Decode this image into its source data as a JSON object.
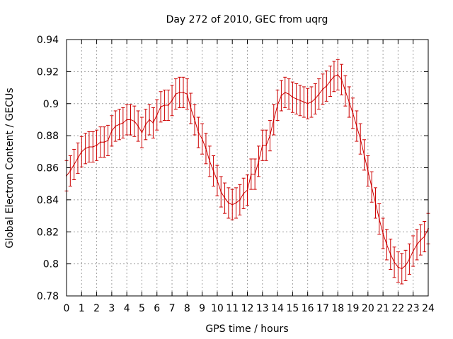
{
  "chart_data": {
    "type": "line",
    "title": "Day 272 of 2010, GEC from uqrg",
    "xlabel": "GPS time / hours",
    "ylabel": "Global Electron Content / GECUs",
    "xlim": [
      0,
      24
    ],
    "ylim": [
      0.78,
      0.94
    ],
    "x_ticks": [
      "0",
      "1",
      "2",
      "3",
      "4",
      "5",
      "6",
      "7",
      "8",
      "9",
      "10",
      "11",
      "12",
      "13",
      "14",
      "15",
      "16",
      "17",
      "18",
      "19",
      "20",
      "21",
      "22",
      "23",
      "24"
    ],
    "y_ticks": [
      "0.78",
      "0.8",
      "0.82",
      "0.84",
      "0.86",
      "0.88",
      "0.9",
      "0.92",
      "0.94"
    ],
    "grid": true,
    "series_color": "#cc0000",
    "series": [
      {
        "name": "GEC",
        "error": 0.0095,
        "points": [
          [
            0.0,
            0.855
          ],
          [
            0.25,
            0.858
          ],
          [
            0.5,
            0.862
          ],
          [
            0.75,
            0.866
          ],
          [
            1.0,
            0.87
          ],
          [
            1.25,
            0.872
          ],
          [
            1.5,
            0.873
          ],
          [
            1.75,
            0.873
          ],
          [
            2.0,
            0.874
          ],
          [
            2.25,
            0.876
          ],
          [
            2.5,
            0.876
          ],
          [
            2.75,
            0.877
          ],
          [
            3.0,
            0.883
          ],
          [
            3.25,
            0.886
          ],
          [
            3.5,
            0.887
          ],
          [
            3.75,
            0.888
          ],
          [
            4.0,
            0.89
          ],
          [
            4.25,
            0.89
          ],
          [
            4.5,
            0.889
          ],
          [
            4.75,
            0.886
          ],
          [
            5.0,
            0.882
          ],
          [
            5.25,
            0.887
          ],
          [
            5.5,
            0.89
          ],
          [
            5.75,
            0.888
          ],
          [
            6.0,
            0.893
          ],
          [
            6.25,
            0.898
          ],
          [
            6.5,
            0.899
          ],
          [
            6.75,
            0.899
          ],
          [
            7.0,
            0.902
          ],
          [
            7.25,
            0.906
          ],
          [
            7.5,
            0.907
          ],
          [
            7.75,
            0.907
          ],
          [
            8.0,
            0.906
          ],
          [
            8.25,
            0.897
          ],
          [
            8.5,
            0.89
          ],
          [
            8.75,
            0.882
          ],
          [
            9.0,
            0.878
          ],
          [
            9.25,
            0.872
          ],
          [
            9.5,
            0.864
          ],
          [
            9.75,
            0.858
          ],
          [
            10.0,
            0.852
          ],
          [
            10.25,
            0.845
          ],
          [
            10.5,
            0.841
          ],
          [
            10.75,
            0.838
          ],
          [
            11.0,
            0.837
          ],
          [
            11.25,
            0.838
          ],
          [
            11.5,
            0.84
          ],
          [
            11.75,
            0.844
          ],
          [
            12.0,
            0.846
          ],
          [
            12.25,
            0.856
          ],
          [
            12.5,
            0.856
          ],
          [
            12.75,
            0.864
          ],
          [
            13.0,
            0.874
          ],
          [
            13.25,
            0.874
          ],
          [
            13.5,
            0.88
          ],
          [
            13.75,
            0.89
          ],
          [
            14.0,
            0.899
          ],
          [
            14.25,
            0.905
          ],
          [
            14.5,
            0.907
          ],
          [
            14.75,
            0.906
          ],
          [
            15.0,
            0.904
          ],
          [
            15.25,
            0.903
          ],
          [
            15.5,
            0.902
          ],
          [
            15.75,
            0.901
          ],
          [
            16.0,
            0.9
          ],
          [
            16.25,
            0.901
          ],
          [
            16.5,
            0.903
          ],
          [
            16.75,
            0.906
          ],
          [
            17.0,
            0.909
          ],
          [
            17.25,
            0.911
          ],
          [
            17.5,
            0.914
          ],
          [
            17.75,
            0.917
          ],
          [
            18.0,
            0.918
          ],
          [
            18.25,
            0.915
          ],
          [
            18.5,
            0.908
          ],
          [
            18.75,
            0.901
          ],
          [
            19.0,
            0.894
          ],
          [
            19.25,
            0.886
          ],
          [
            19.5,
            0.878
          ],
          [
            19.75,
            0.868
          ],
          [
            20.0,
            0.858
          ],
          [
            20.25,
            0.848
          ],
          [
            20.5,
            0.838
          ],
          [
            20.75,
            0.828
          ],
          [
            21.0,
            0.819
          ],
          [
            21.25,
            0.812
          ],
          [
            21.5,
            0.806
          ],
          [
            21.75,
            0.801
          ],
          [
            22.0,
            0.798
          ],
          [
            22.25,
            0.797
          ],
          [
            22.5,
            0.799
          ],
          [
            22.75,
            0.803
          ],
          [
            23.0,
            0.808
          ],
          [
            23.25,
            0.812
          ],
          [
            23.5,
            0.815
          ],
          [
            23.75,
            0.817
          ],
          [
            24.0,
            0.822
          ]
        ]
      }
    ]
  }
}
